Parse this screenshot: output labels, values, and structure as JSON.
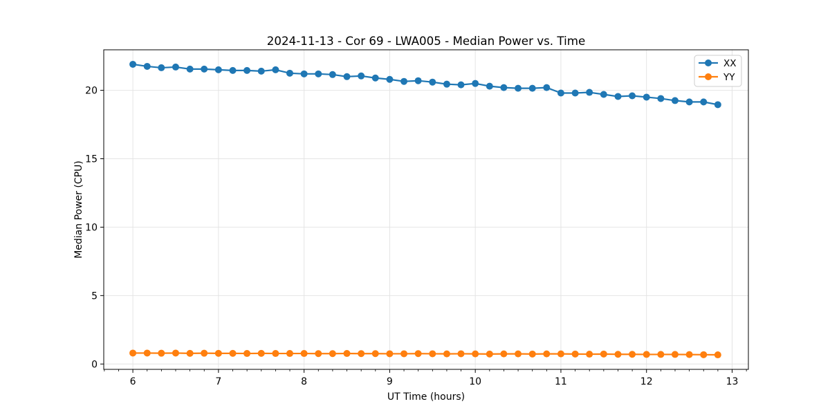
{
  "chart_data": {
    "type": "line",
    "title": "2024-11-13 - Cor 69 - LWA005 - Median Power vs. Time",
    "xlabel": "UT Time (hours)",
    "ylabel": "Median Power (CPU)",
    "xlim": [
      5.66,
      13.19
    ],
    "ylim": [
      -0.39,
      22.96
    ],
    "x_ticks": [
      6,
      7,
      8,
      9,
      10,
      11,
      12,
      13
    ],
    "y_ticks": [
      0,
      5,
      10,
      15,
      20
    ],
    "x_minor_tick_step": 0.16667,
    "grid": true,
    "grid_color": "#e4e4e4",
    "frame_color": "#000000",
    "background_color": "#ffffff",
    "legend": {
      "position": "upper right"
    },
    "x": [
      6.0,
      6.167,
      6.333,
      6.5,
      6.667,
      6.833,
      7.0,
      7.167,
      7.333,
      7.5,
      7.667,
      7.833,
      8.0,
      8.167,
      8.333,
      8.5,
      8.667,
      8.833,
      9.0,
      9.167,
      9.333,
      9.5,
      9.667,
      9.833,
      10.0,
      10.167,
      10.333,
      10.5,
      10.667,
      10.833,
      11.0,
      11.167,
      11.333,
      11.5,
      11.667,
      11.833,
      12.0,
      12.167,
      12.333,
      12.5,
      12.667,
      12.833
    ],
    "series": [
      {
        "name": "XX",
        "color": "#1f77b4",
        "marker": "circle",
        "values": [
          21.9,
          21.75,
          21.65,
          21.7,
          21.55,
          21.55,
          21.5,
          21.45,
          21.45,
          21.4,
          21.5,
          21.25,
          21.2,
          21.2,
          21.15,
          21.0,
          21.05,
          20.9,
          20.8,
          20.65,
          20.7,
          20.6,
          20.45,
          20.4,
          20.5,
          20.3,
          20.2,
          20.15,
          20.15,
          20.2,
          19.8,
          19.8,
          19.85,
          19.7,
          19.55,
          19.6,
          19.5,
          19.4,
          19.25,
          19.15,
          19.15,
          18.95
        ]
      },
      {
        "name": "YY",
        "color": "#ff7f0e",
        "marker": "circle",
        "values": [
          0.8,
          0.8,
          0.79,
          0.8,
          0.78,
          0.79,
          0.78,
          0.78,
          0.77,
          0.78,
          0.77,
          0.77,
          0.77,
          0.76,
          0.76,
          0.77,
          0.76,
          0.76,
          0.75,
          0.75,
          0.76,
          0.75,
          0.74,
          0.75,
          0.74,
          0.73,
          0.74,
          0.74,
          0.73,
          0.74,
          0.74,
          0.73,
          0.72,
          0.73,
          0.71,
          0.71,
          0.7,
          0.7,
          0.7,
          0.69,
          0.68,
          0.67
        ]
      }
    ]
  }
}
